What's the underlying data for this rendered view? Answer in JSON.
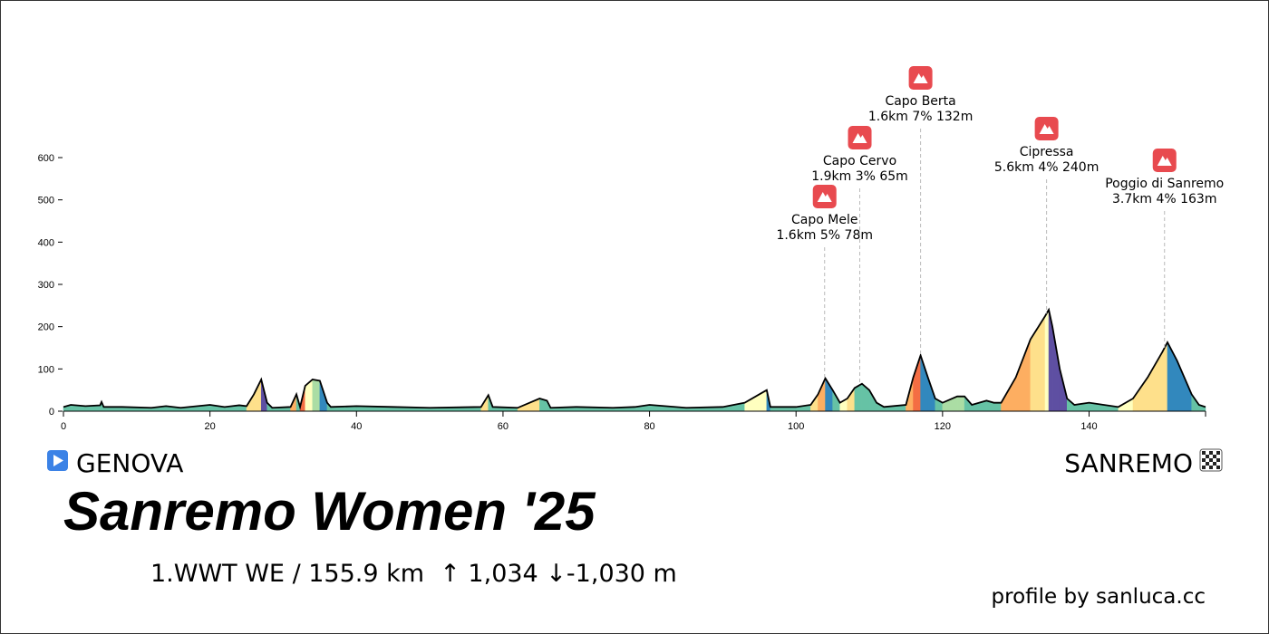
{
  "chart_data": {
    "type": "elevation",
    "title": "Sanremo Women '25",
    "subtitle": "1.WWT WE / 155.9 km  ↑ 1,034 ↓-1,030 m",
    "start": "GENOVA",
    "finish": "SANREMO",
    "credit": "profile by sanluca.cc",
    "xlim": [
      0,
      155.9
    ],
    "xticks": [
      0,
      20,
      40,
      60,
      80,
      100,
      120,
      140
    ],
    "ylim": [
      0,
      600
    ],
    "yticks": [
      0,
      100,
      200,
      300,
      400,
      500,
      600
    ],
    "line_color": "#000000",
    "x": [
      0,
      1,
      3,
      5,
      5.2,
      5.5,
      8,
      12,
      14,
      16,
      20,
      22,
      24,
      25,
      26,
      27,
      27.8,
      28.5,
      31,
      31.8,
      32.3,
      33,
      34,
      35,
      36,
      36.5,
      40,
      45,
      50,
      57,
      58,
      58.6,
      62,
      65,
      66,
      66.5,
      70,
      75,
      78,
      80,
      85,
      90,
      93,
      95,
      96,
      96.5,
      100,
      102,
      103,
      104,
      105,
      106,
      107,
      108,
      109,
      110,
      111,
      112,
      115,
      116,
      117,
      118,
      119,
      120,
      122,
      123,
      124,
      126,
      127,
      128,
      130,
      132,
      134,
      134.5,
      135,
      136,
      137,
      138,
      140,
      142,
      144,
      146,
      148,
      150,
      150.7,
      152,
      154,
      155,
      155.9
    ],
    "values": [
      10,
      15,
      12,
      14,
      22,
      10,
      10,
      8,
      12,
      8,
      15,
      10,
      14,
      12,
      40,
      75,
      20,
      8,
      10,
      40,
      10,
      60,
      75,
      72,
      20,
      10,
      12,
      10,
      8,
      10,
      38,
      10,
      8,
      30,
      25,
      8,
      10,
      8,
      10,
      15,
      8,
      10,
      20,
      40,
      50,
      10,
      10,
      15,
      40,
      78,
      50,
      20,
      30,
      55,
      65,
      50,
      20,
      10,
      15,
      80,
      132,
      80,
      30,
      20,
      35,
      35,
      15,
      25,
      20,
      20,
      80,
      170,
      225,
      240,
      200,
      100,
      30,
      15,
      20,
      15,
      10,
      30,
      80,
      140,
      163,
      120,
      40,
      15,
      10
    ],
    "colors": [
      "#66c2a5",
      "#66c2a5",
      "#66c2a5",
      "#66c2a5",
      "#66c2a5",
      "#66c2a5",
      "#66c2a5",
      "#66c2a5",
      "#66c2a5",
      "#66c2a5",
      "#66c2a5",
      "#66c2a5",
      "#66c2a5",
      "#fee08b",
      "#fee08b",
      "#5e4fa2",
      "#66c2a5",
      "#66c2a5",
      "#fdae61",
      "#66c2a5",
      "#f46d43",
      "#ffffbf",
      "#abdda4",
      "#3288bd",
      "#66c2a5",
      "#66c2a5",
      "#66c2a5",
      "#66c2a5",
      "#66c2a5",
      "#fee08b",
      "#66c2a5",
      "#66c2a5",
      "#fee08b",
      "#66c2a5",
      "#66c2a5",
      "#66c2a5",
      "#66c2a5",
      "#66c2a5",
      "#66c2a5",
      "#66c2a5",
      "#66c2a5",
      "#66c2a5",
      "#ffffbf",
      "#ffffbf",
      "#3288bd",
      "#66c2a5",
      "#66c2a5",
      "#fee08b",
      "#fdae61",
      "#3288bd",
      "#66c2a5",
      "#ffffbf",
      "#fee08b",
      "#66c2a5",
      "#66c2a5",
      "#66c2a5",
      "#66c2a5",
      "#66c2a5",
      "#fdae61",
      "#f46d43",
      "#3288bd",
      "#3288bd",
      "#66c2a5",
      "#abdda4",
      "#abdda4",
      "#66c2a5",
      "#66c2a5",
      "#66c2a5",
      "#66c2a5",
      "#fdae61",
      "#fdae61",
      "#fee08b",
      "#ffffbf",
      "#5e4fa2",
      "#5e4fa2",
      "#5e4fa2",
      "#66c2a5",
      "#66c2a5",
      "#66c2a5",
      "#66c2a5",
      "#ffffbf",
      "#fee08b",
      "#fee08b",
      "#fee08b",
      "#3288bd",
      "#3288bd",
      "#66c2a5",
      "#66c2a5"
    ],
    "climbs": [
      {
        "name": "Capo Mele",
        "stats": "1.6km 5% 78m",
        "km": 103.9
      },
      {
        "name": "Capo Cervo",
        "stats": "1.9km 3% 65m",
        "km": 108.7
      },
      {
        "name": "Capo Berta",
        "stats": "1.6km 7% 132m",
        "km": 117
      },
      {
        "name": "Cipressa",
        "stats": "5.6km 4% 240m",
        "km": 134.2
      },
      {
        "name": "Poggio di Sanremo",
        "stats": "3.7km 4% 163m",
        "km": 150.3
      }
    ]
  }
}
